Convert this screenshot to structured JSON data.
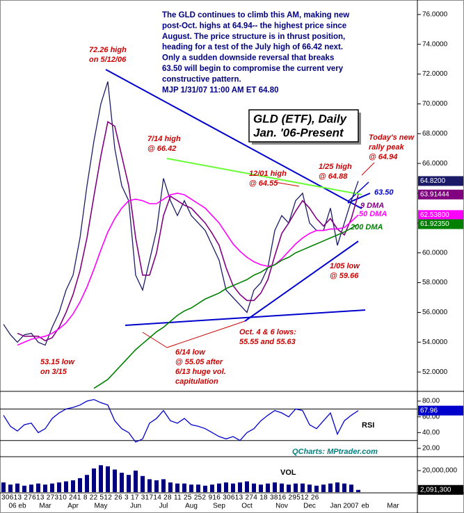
{
  "chart_data": [
    {
      "type": "line",
      "title": [
        "GLD (ETF), Daily",
        "Jan. '06-Present"
      ],
      "commentary": [
        "The GLD continues to climb this AM, making new",
        "post-Oct. highs at 64.94-- the highest price since",
        "August. The price structure is in thrust position,",
        "heading for a test of the July high of 66.42 next.",
        "Only a sudden downside reversal that breaks",
        "63.50 will begin to compromise the current very",
        "constructive pattern.",
        "MJP 1/31/07 11:00 AM ET 64.80"
      ],
      "ylim": [
        50.7,
        76.6
      ],
      "yticks": [
        {
          "value": 52,
          "label": "52.0000"
        },
        {
          "value": 54,
          "label": "54.0000"
        },
        {
          "value": 56,
          "label": "56.0000"
        },
        {
          "value": 58,
          "label": "58.0000"
        },
        {
          "value": 60,
          "label": "60.0000"
        },
        {
          "value": 62,
          "label": "62.0000"
        },
        {
          "value": 64,
          "label": "64.0000"
        },
        {
          "value": 66,
          "label": "66.0000"
        },
        {
          "value": 68,
          "label": "68.0000"
        },
        {
          "value": 70,
          "label": "70.0000"
        },
        {
          "value": 72,
          "label": "72.0000"
        },
        {
          "value": 74,
          "label": "74.0000"
        },
        {
          "value": 76,
          "label": "76.0000"
        }
      ],
      "series": [
        {
          "color": "#1a1a66",
          "values": [
            55.2,
            54.5,
            54.0,
            54.5,
            54.6,
            54.0,
            53.8,
            55.0,
            56.0,
            57.5,
            58.5,
            61.0,
            64.5,
            67.5,
            70.0,
            71.5,
            67.0,
            64.5,
            63.5,
            58.5,
            57.5,
            59.5,
            61.5,
            65.0,
            63.5,
            62.5,
            63.5,
            62.5,
            62.0,
            61.5,
            60.5,
            59.5,
            57.5,
            57.0,
            56.5,
            56.0,
            57.5,
            58.0,
            59.0,
            61.5,
            62.5,
            62.0,
            63.5,
            64.0,
            62.0,
            61.5,
            61.5,
            63.0,
            60.5,
            62.0,
            63.5,
            64.82,
            null,
            null,
            null,
            null,
            null,
            null,
            null,
            null
          ],
          "value_labels": [
            null,
            null,
            null,
            null,
            null,
            null,
            null,
            null,
            null,
            null,
            null,
            null,
            null,
            null,
            null,
            null,
            null,
            null,
            null,
            null,
            null,
            null,
            null,
            null,
            null,
            null,
            null,
            null,
            null,
            null,
            null,
            null,
            null,
            null,
            null,
            null,
            null,
            null,
            null,
            null,
            null,
            null,
            null,
            null,
            null,
            null,
            null,
            null,
            null,
            null,
            null,
            "64.8200",
            null,
            null,
            null,
            null,
            null,
            null,
            null,
            null
          ]
        },
        {
          "name": "9 DMA",
          "color": "#800080",
          "values": [
            null,
            null,
            54.6,
            54.4,
            54.4,
            54.4,
            54.1,
            54.3,
            55.0,
            56.0,
            57.2,
            58.8,
            61.0,
            63.8,
            66.5,
            68.8,
            68.5,
            66.5,
            64.5,
            61.0,
            58.5,
            58.5,
            60.0,
            62.5,
            63.8,
            63.5,
            63.2,
            63.0,
            62.5,
            62.0,
            61.3,
            60.5,
            59.0,
            57.8,
            57.2,
            56.8,
            56.8,
            57.3,
            58.2,
            59.8,
            61.3,
            62.0,
            62.8,
            63.5,
            63.0,
            62.3,
            61.8,
            62.3,
            61.6,
            61.2,
            62.3,
            63.91444,
            null,
            null,
            null,
            null,
            null,
            null,
            null,
            null
          ],
          "value_labels": [
            null,
            null,
            null,
            null,
            null,
            null,
            null,
            null,
            null,
            null,
            null,
            null,
            null,
            null,
            null,
            null,
            null,
            null,
            null,
            null,
            null,
            null,
            null,
            null,
            null,
            null,
            null,
            null,
            null,
            null,
            null,
            null,
            null,
            null,
            null,
            null,
            null,
            null,
            null,
            null,
            null,
            null,
            null,
            null,
            null,
            null,
            null,
            null,
            null,
            null,
            null,
            "63.91444",
            null,
            null,
            null,
            null,
            null,
            null,
            null,
            null
          ]
        },
        {
          "name": "50 DMA",
          "color": "#ff00ff",
          "values": [
            null,
            null,
            53.8,
            54.0,
            54.2,
            54.3,
            54.4,
            54.6,
            54.9,
            55.3,
            55.9,
            56.7,
            57.7,
            58.9,
            60.2,
            61.4,
            62.3,
            63.0,
            63.5,
            63.6,
            63.5,
            63.3,
            63.3,
            63.6,
            63.9,
            64.0,
            63.9,
            63.6,
            63.3,
            63.0,
            62.5,
            62.0,
            61.3,
            60.6,
            60.1,
            59.7,
            59.4,
            59.2,
            59.1,
            59.2,
            59.6,
            60.1,
            60.6,
            61.0,
            61.3,
            61.5,
            61.5,
            61.6,
            61.6,
            61.7,
            62.1,
            62.538,
            null,
            null,
            null,
            null,
            null,
            null,
            null,
            null
          ],
          "value_labels": [
            null,
            null,
            null,
            null,
            null,
            null,
            null,
            null,
            null,
            null,
            null,
            null,
            null,
            null,
            null,
            null,
            null,
            null,
            null,
            null,
            null,
            null,
            null,
            null,
            null,
            null,
            null,
            null,
            null,
            null,
            null,
            null,
            null,
            null,
            null,
            null,
            null,
            null,
            null,
            null,
            null,
            null,
            null,
            null,
            null,
            null,
            null,
            null,
            null,
            null,
            null,
            "62.53800",
            null,
            null,
            null,
            null,
            null,
            null,
            null,
            null
          ]
        },
        {
          "name": "200 DMA",
          "color": "#008000",
          "values": [
            null,
            null,
            null,
            null,
            null,
            null,
            null,
            null,
            null,
            null,
            null,
            null,
            null,
            50.9,
            51.2,
            51.5,
            52.0,
            52.5,
            53.0,
            53.5,
            53.9,
            54.3,
            54.7,
            55.0,
            55.4,
            55.8,
            56.1,
            56.3,
            56.6,
            56.9,
            57.1,
            57.3,
            57.6,
            57.8,
            58.0,
            58.2,
            58.5,
            58.7,
            59.0,
            59.2,
            59.5,
            59.7,
            60.0,
            60.2,
            60.4,
            60.6,
            60.8,
            61.0,
            61.2,
            61.4,
            61.65,
            61.9235,
            null,
            null,
            null,
            null,
            null,
            null,
            null,
            null
          ],
          "value_labels": [
            null,
            null,
            null,
            null,
            null,
            null,
            null,
            null,
            null,
            null,
            null,
            null,
            null,
            null,
            null,
            null,
            null,
            null,
            null,
            null,
            null,
            null,
            null,
            null,
            null,
            null,
            null,
            null,
            null,
            null,
            null,
            null,
            null,
            null,
            null,
            null,
            null,
            null,
            null,
            null,
            null,
            null,
            null,
            null,
            null,
            null,
            null,
            null,
            null,
            null,
            null,
            "61.92350",
            null,
            null,
            null,
            null,
            null,
            null,
            null,
            null
          ]
        }
      ],
      "annotations": [
        {
          "lines": [
            "72.26 high",
            "on 5/12/06"
          ],
          "color": "#cc0000"
        },
        {
          "lines": [
            "7/14 high",
            "@ 66.42"
          ],
          "color": "#cc0000"
        },
        {
          "lines": [
            "12/01 high",
            "@ 64.55"
          ],
          "color": "#cc0000"
        },
        {
          "lines": [
            "1/25 high",
            "@ 64.88"
          ],
          "color": "#cc0000"
        },
        {
          "lines": [
            "Today's new",
            "rally peak",
            "@ 64.94"
          ],
          "color": "#cc0000"
        },
        {
          "lines": [
            "1/05 low",
            "@ 59.66"
          ],
          "color": "#cc0000"
        },
        {
          "lines": [
            "Oct. 4 & 6 lows:",
            "55.55 and 55.63"
          ],
          "color": "#cc0000"
        },
        {
          "lines": [
            "6/14 low",
            "@ 55.05 after",
            "6/13 huge vol.",
            "capitulation"
          ],
          "color": "#cc0000"
        },
        {
          "lines": [
            "53.15 low",
            "on 3/15"
          ],
          "color": "#cc0000"
        },
        {
          "lines": [
            "63.50"
          ],
          "color": "#0000cc"
        }
      ]
    },
    {
      "type": "line",
      "title": "RSI",
      "credit": "QCharts: MPtrader.com",
      "ylim": [
        11.2,
        90.6
      ],
      "yticks": [
        {
          "value": 20,
          "label": "20.00"
        },
        {
          "value": 40,
          "label": "40.00"
        },
        {
          "value": 60,
          "label": "60.00"
        },
        {
          "value": 80,
          "label": "80.00"
        }
      ],
      "hlines": [
        70,
        30
      ],
      "series": [
        {
          "color": "#0000cc",
          "values": [
            62,
            48,
            42,
            50,
            52,
            40,
            45,
            58,
            65,
            70,
            72,
            75,
            80,
            82,
            78,
            75,
            55,
            45,
            40,
            28,
            32,
            52,
            58,
            68,
            55,
            52,
            58,
            50,
            48,
            45,
            40,
            35,
            32,
            35,
            30,
            40,
            45,
            55,
            62,
            68,
            65,
            60,
            70,
            68,
            50,
            45,
            55,
            65,
            38,
            55,
            62,
            67.96,
            null,
            null,
            null,
            null,
            null,
            null,
            null,
            null
          ],
          "value_labels": [
            null,
            null,
            null,
            null,
            null,
            null,
            null,
            null,
            null,
            null,
            null,
            null,
            null,
            null,
            null,
            null,
            null,
            null,
            null,
            null,
            null,
            null,
            null,
            null,
            null,
            null,
            null,
            null,
            null,
            null,
            null,
            null,
            null,
            null,
            null,
            null,
            null,
            null,
            null,
            null,
            null,
            null,
            null,
            null,
            null,
            null,
            null,
            null,
            null,
            null,
            null,
            "67.96",
            null,
            null,
            null,
            null,
            null,
            null,
            null,
            null
          ]
        }
      ]
    },
    {
      "type": "bar",
      "title": "VOL",
      "categories": [
        null,
        null,
        "06 eb",
        null,
        null,
        null,
        "Mar",
        null,
        null,
        null,
        "Apr",
        null,
        null,
        null,
        "May",
        null,
        null,
        null,
        null,
        "Jun",
        null,
        null,
        null,
        "Jul",
        null,
        null,
        null,
        "Aug",
        null,
        null,
        null,
        "Sep",
        null,
        null,
        null,
        "Oct",
        null,
        null,
        null,
        null,
        "Nov",
        null,
        null,
        null,
        "Dec",
        null,
        null,
        null,
        null,
        "Jan 2007",
        null,
        null,
        "eb",
        null,
        null,
        null,
        "Mar",
        null,
        null,
        null
      ],
      "day_labels": "30613 27613 27310 241 8 22 512 26 3 17 31714 28 11 25 252 916 30613 274 18 3816 29512 26",
      "ylim": [
        0,
        31000000
      ],
      "yticks": [
        {
          "value": 20000000,
          "label": "20,000,000"
        }
      ],
      "color": "#000080",
      "values": [
        9000000,
        7000000,
        8000000,
        6000000,
        7000000,
        8000000,
        7000000,
        8000000,
        9000000,
        10000000,
        11000000,
        13000000,
        16000000,
        22000000,
        25000000,
        24000000,
        21000000,
        18000000,
        16000000,
        20000000,
        15000000,
        12000000,
        11000000,
        12000000,
        9000000,
        8000000,
        8000000,
        7000000,
        7000000,
        6000000,
        7000000,
        8000000,
        9000000,
        8000000,
        9000000,
        10000000,
        8000000,
        7000000,
        8000000,
        9000000,
        8000000,
        7000000,
        8000000,
        8000000,
        7000000,
        6000000,
        7000000,
        8000000,
        9000000,
        8000000,
        7000000,
        2091300,
        null,
        null,
        null,
        null,
        null,
        null,
        null,
        null
      ],
      "value_labels": [
        null,
        null,
        null,
        null,
        null,
        null,
        null,
        null,
        null,
        null,
        null,
        null,
        null,
        null,
        null,
        null,
        null,
        null,
        null,
        null,
        null,
        null,
        null,
        null,
        null,
        null,
        null,
        null,
        null,
        null,
        null,
        null,
        null,
        null,
        null,
        null,
        null,
        null,
        null,
        null,
        null,
        null,
        null,
        null,
        null,
        null,
        null,
        null,
        null,
        null,
        null,
        "2,091,300",
        null,
        null,
        null,
        null,
        null,
        null,
        null,
        null
      ]
    }
  ]
}
